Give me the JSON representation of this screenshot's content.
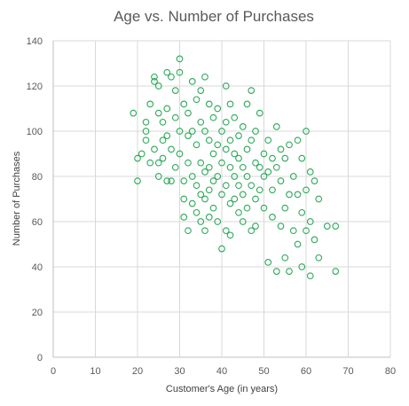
{
  "chart_data": {
    "type": "scatter",
    "title": "Age vs. Number of Purchases",
    "xlabel": "Customer's Age (in years)",
    "ylabel": "Number of Purchases",
    "xlim": [
      0,
      80
    ],
    "ylim": [
      0,
      140
    ],
    "x_ticks": [
      0,
      10,
      20,
      30,
      40,
      50,
      60,
      70,
      80
    ],
    "y_ticks": [
      0,
      20,
      40,
      60,
      80,
      100,
      120,
      140
    ],
    "grid": true,
    "legend": "none",
    "marker": "open-circle",
    "color": "#2ca85a",
    "points": [
      [
        19,
        108
      ],
      [
        20,
        88
      ],
      [
        20,
        78
      ],
      [
        21,
        90
      ],
      [
        22,
        100
      ],
      [
        22,
        96
      ],
      [
        22,
        104
      ],
      [
        23,
        86
      ],
      [
        23,
        112
      ],
      [
        24,
        122
      ],
      [
        24,
        124
      ],
      [
        24,
        92
      ],
      [
        25,
        80
      ],
      [
        25,
        86
      ],
      [
        25,
        108
      ],
      [
        25,
        120
      ],
      [
        26,
        104
      ],
      [
        26,
        96
      ],
      [
        26,
        88
      ],
      [
        27,
        126
      ],
      [
        27,
        98
      ],
      [
        27,
        78
      ],
      [
        27,
        110
      ],
      [
        28,
        124
      ],
      [
        28,
        92
      ],
      [
        28,
        78
      ],
      [
        29,
        84
      ],
      [
        29,
        106
      ],
      [
        29,
        118
      ],
      [
        30,
        132
      ],
      [
        30,
        126
      ],
      [
        30,
        100
      ],
      [
        30,
        90
      ],
      [
        31,
        78
      ],
      [
        31,
        70
      ],
      [
        31,
        62
      ],
      [
        31,
        112
      ],
      [
        32,
        98
      ],
      [
        32,
        86
      ],
      [
        32,
        56
      ],
      [
        32,
        108
      ],
      [
        33,
        122
      ],
      [
        33,
        80
      ],
      [
        33,
        68
      ],
      [
        33,
        100
      ],
      [
        34,
        114
      ],
      [
        34,
        94
      ],
      [
        34,
        76
      ],
      [
        34,
        64
      ],
      [
        35,
        118
      ],
      [
        35,
        104
      ],
      [
        35,
        86
      ],
      [
        35,
        72
      ],
      [
        35,
        60
      ],
      [
        36,
        124
      ],
      [
        36,
        100
      ],
      [
        36,
        82
      ],
      [
        36,
        70
      ],
      [
        36,
        56
      ],
      [
        37,
        112
      ],
      [
        37,
        96
      ],
      [
        37,
        84
      ],
      [
        37,
        74
      ],
      [
        37,
        62
      ],
      [
        38,
        106
      ],
      [
        38,
        90
      ],
      [
        38,
        78
      ],
      [
        38,
        66
      ],
      [
        39,
        110
      ],
      [
        39,
        94
      ],
      [
        39,
        80
      ],
      [
        39,
        60
      ],
      [
        40,
        100
      ],
      [
        40,
        86
      ],
      [
        40,
        72
      ],
      [
        40,
        48
      ],
      [
        41,
        120
      ],
      [
        41,
        104
      ],
      [
        41,
        92
      ],
      [
        41,
        76
      ],
      [
        41,
        56
      ],
      [
        42,
        112
      ],
      [
        42,
        96
      ],
      [
        42,
        84
      ],
      [
        42,
        68
      ],
      [
        42,
        54
      ],
      [
        43,
        106
      ],
      [
        43,
        90
      ],
      [
        43,
        80
      ],
      [
        43,
        70
      ],
      [
        44,
        98
      ],
      [
        44,
        88
      ],
      [
        44,
        76
      ],
      [
        44,
        64
      ],
      [
        45,
        102
      ],
      [
        45,
        84
      ],
      [
        45,
        72
      ],
      [
        45,
        60
      ],
      [
        46,
        112
      ],
      [
        46,
        92
      ],
      [
        46,
        80
      ],
      [
        46,
        66
      ],
      [
        47,
        118
      ],
      [
        47,
        96
      ],
      [
        47,
        76
      ],
      [
        47,
        56
      ],
      [
        48,
        100
      ],
      [
        48,
        86
      ],
      [
        48,
        70
      ],
      [
        48,
        58
      ],
      [
        49,
        108
      ],
      [
        49,
        84
      ],
      [
        49,
        74
      ],
      [
        50,
        90
      ],
      [
        50,
        80
      ],
      [
        50,
        66
      ],
      [
        51,
        96
      ],
      [
        51,
        82
      ],
      [
        51,
        42
      ],
      [
        52,
        88
      ],
      [
        52,
        74
      ],
      [
        52,
        62
      ],
      [
        53,
        102
      ],
      [
        53,
        84
      ],
      [
        53,
        38
      ],
      [
        54,
        92
      ],
      [
        54,
        78
      ],
      [
        54,
        58
      ],
      [
        55,
        88
      ],
      [
        55,
        66
      ],
      [
        55,
        44
      ],
      [
        56,
        94
      ],
      [
        56,
        72
      ],
      [
        56,
        38
      ],
      [
        57,
        80
      ],
      [
        57,
        56
      ],
      [
        58,
        96
      ],
      [
        58,
        72
      ],
      [
        58,
        50
      ],
      [
        59,
        88
      ],
      [
        59,
        64
      ],
      [
        59,
        40
      ],
      [
        60,
        100
      ],
      [
        60,
        74
      ],
      [
        60,
        56
      ],
      [
        61,
        82
      ],
      [
        61,
        60
      ],
      [
        61,
        36
      ],
      [
        62,
        78
      ],
      [
        62,
        52
      ],
      [
        63,
        70
      ],
      [
        63,
        44
      ],
      [
        65,
        58
      ],
      [
        67,
        58
      ],
      [
        67,
        38
      ]
    ]
  }
}
